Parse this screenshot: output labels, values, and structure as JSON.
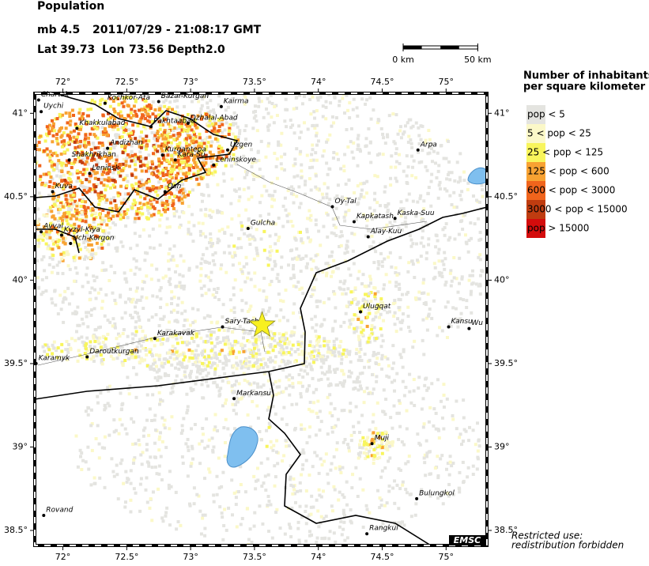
{
  "header": {
    "title": "Population",
    "magnitude": "mb 4.5",
    "datetime": "2011/07/29 - 21:08:17 GMT"
  },
  "event": {
    "lat_label": "Lat",
    "lat": 39.73,
    "lon_label": "Lon",
    "lon": 73.56,
    "depth_label": "Depth",
    "depth": "2.0"
  },
  "map": {
    "xlim": [
      71.78,
      75.32
    ],
    "ylim": [
      38.41,
      41.12
    ],
    "xticks": [
      {
        "value": 72,
        "label": "72°"
      },
      {
        "value": 72.5,
        "label": "72.5°"
      },
      {
        "value": 73,
        "label": "73°"
      },
      {
        "value": 73.5,
        "label": "73.5°"
      },
      {
        "value": 74,
        "label": "74°"
      },
      {
        "value": 74.5,
        "label": "74.5°"
      },
      {
        "value": 75,
        "label": "75°"
      }
    ],
    "yticks": [
      {
        "value": 38.5,
        "label": "38.5°"
      },
      {
        "value": 39,
        "label": "39°"
      },
      {
        "value": 39.5,
        "label": "39.5°"
      },
      {
        "value": 40,
        "label": "40°"
      },
      {
        "value": 40.5,
        "label": "40.5°"
      },
      {
        "value": 41,
        "label": "41°"
      }
    ],
    "scale": [
      {
        "value": 0,
        "label": "0 km"
      },
      {
        "value": 50,
        "label": "50 km"
      }
    ],
    "cities": [
      {
        "name": "Chartak",
        "lon": 71.81,
        "lat": 41.08
      },
      {
        "name": "Uychi",
        "lon": 71.83,
        "lat": 41.01
      },
      {
        "name": "Kochkor-Ata",
        "lon": 72.33,
        "lat": 41.06
      },
      {
        "name": "Bazar-Kurgan",
        "lon": 72.75,
        "lat": 41.07
      },
      {
        "name": "Kairma",
        "lon": 73.24,
        "lat": 41.04
      },
      {
        "name": "Khakkulabad",
        "lon": 72.11,
        "lat": 40.91
      },
      {
        "name": "Pakhtaabad",
        "lon": 72.69,
        "lat": 40.92
      },
      {
        "name": "Dzhalal-Abad",
        "lon": 72.98,
        "lat": 40.94
      },
      {
        "name": "Andizhan",
        "lon": 72.35,
        "lat": 40.79
      },
      {
        "name": "Kurgantepa",
        "lon": 72.78,
        "lat": 40.75
      },
      {
        "name": "Kara-Su",
        "lon": 72.88,
        "lat": 40.72
      },
      {
        "name": "Uzgen",
        "lon": 73.29,
        "lat": 40.78
      },
      {
        "name": "Shakhrikhan",
        "lon": 72.05,
        "lat": 40.72
      },
      {
        "name": "Leninsk",
        "lon": 72.21,
        "lat": 40.64
      },
      {
        "name": "Leninskoye",
        "lon": 73.18,
        "lat": 40.69
      },
      {
        "name": "Kuva",
        "lon": 71.92,
        "lat": 40.53
      },
      {
        "name": "Osh",
        "lon": 72.8,
        "lat": 40.53
      },
      {
        "name": "Arpa",
        "lon": 74.78,
        "lat": 40.78
      },
      {
        "name": "Oy-Tal",
        "lon": 74.11,
        "lat": 40.44
      },
      {
        "name": "Kapkatash",
        "lon": 74.28,
        "lat": 40.35
      },
      {
        "name": "Kaska-Suu",
        "lon": 74.6,
        "lat": 40.37
      },
      {
        "name": "Alay-Kuu",
        "lon": 74.39,
        "lat": 40.26
      },
      {
        "name": "Gulcha",
        "lon": 73.45,
        "lat": 40.31
      },
      {
        "name": "Avval",
        "lon": 71.83,
        "lat": 40.29
      },
      {
        "name": "Kyzyl-Kiya",
        "lon": 71.99,
        "lat": 40.27
      },
      {
        "name": "Uch-Korgon",
        "lon": 72.06,
        "lat": 40.22
      },
      {
        "name": "Ulugqat",
        "lon": 74.33,
        "lat": 39.81
      },
      {
        "name": "Kansu",
        "lon": 75.02,
        "lat": 39.72
      },
      {
        "name": "Wu",
        "lon": 75.18,
        "lat": 39.71
      },
      {
        "name": "Sary-Tash",
        "lon": 73.25,
        "lat": 39.72
      },
      {
        "name": "Karakavak",
        "lon": 72.72,
        "lat": 39.65
      },
      {
        "name": "Daroutkurgan",
        "lon": 72.19,
        "lat": 39.54
      },
      {
        "name": "Karamyk",
        "lon": 71.79,
        "lat": 39.5
      },
      {
        "name": "Markansu",
        "lon": 73.34,
        "lat": 39.29
      },
      {
        "name": "Muji",
        "lon": 74.42,
        "lat": 39.02
      },
      {
        "name": "Bulungkol",
        "lon": 74.77,
        "lat": 38.69
      },
      {
        "name": "Rovand",
        "lon": 71.85,
        "lat": 38.59
      },
      {
        "name": "Rangkul",
        "lon": 74.38,
        "lat": 38.48
      }
    ],
    "logo": "EMSC",
    "note": [
      "Restricted use:",
      "redistribution forbidden"
    ]
  },
  "legend": {
    "title": [
      "Number of inhabitants",
      "per square kilometer"
    ],
    "items": [
      {
        "label": "pop < 5",
        "color": "#e4e4e0"
      },
      {
        "label": "5 < pop < 25",
        "color": "#fbf8c8"
      },
      {
        "label": "25 < pop < 125",
        "color": "#f8f55c"
      },
      {
        "label": "125 < pop < 600",
        "color": "#f8a232"
      },
      {
        "label": "600 < pop < 3000",
        "color": "#f0641c"
      },
      {
        "label": "3000 < pop < 15000",
        "color": "#bf3c10"
      },
      {
        "label": "pop > 15000",
        "color": "#d40c0c"
      }
    ]
  }
}
